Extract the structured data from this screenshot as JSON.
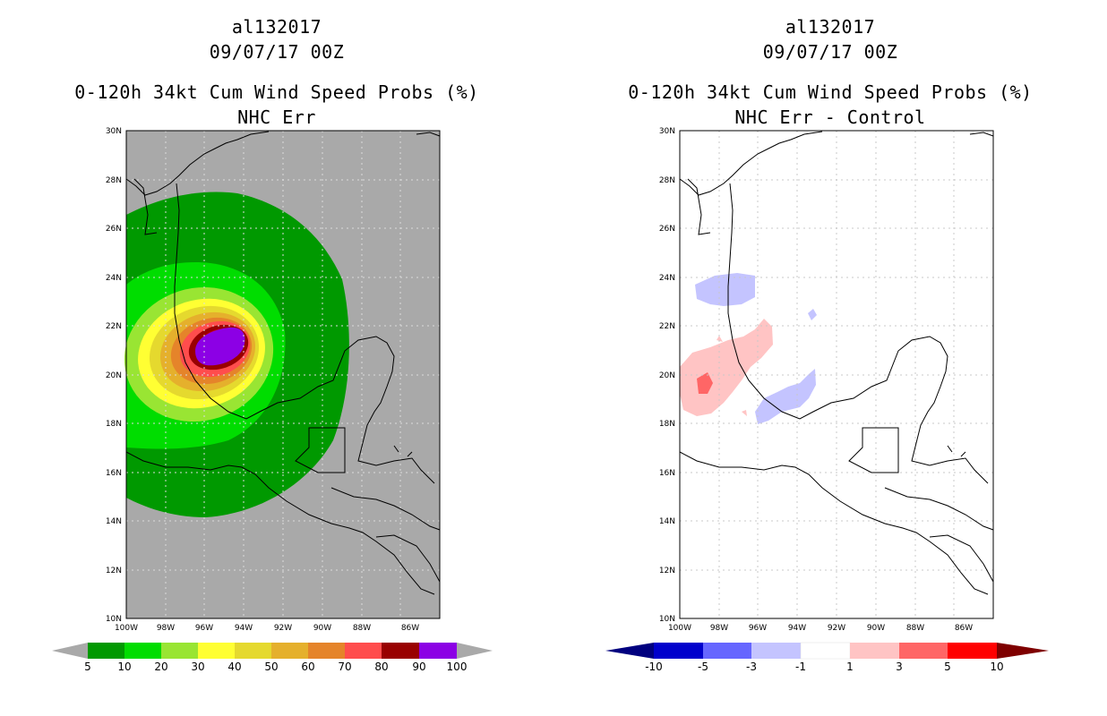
{
  "left_panel": {
    "storm_id": "al132017",
    "datetime": "09/07/17 00Z",
    "title": "0-120h 34kt Cum Wind Speed Probs (%)",
    "subtitle": "NHC Err",
    "background_color": "#a9a9a9",
    "colorbar": {
      "labels": [
        "5",
        "10",
        "20",
        "30",
        "40",
        "50",
        "60",
        "70",
        "80",
        "90",
        "100"
      ],
      "colors": [
        "#009900",
        "#00dd00",
        "#99e533",
        "#ffff33",
        "#e5d92e",
        "#e5b02c",
        "#e5842a",
        "#ff4d4d",
        "#990000",
        "#8c00e5"
      ],
      "under_color": "#a9a9a9",
      "over_color": "#a9a9a9"
    }
  },
  "right_panel": {
    "storm_id": "al132017",
    "datetime": "09/07/17 00Z",
    "title": "0-120h 34kt Cum Wind Speed Probs (%)",
    "subtitle": "NHC Err - Control",
    "background_color": "#ffffff",
    "colorbar": {
      "labels": [
        "-10",
        "-5",
        "-3",
        "-1",
        "1",
        "3",
        "5",
        "10"
      ],
      "colors": [
        "#0000cc",
        "#6666ff",
        "#c4c4ff",
        "#ffffff",
        "#ffc4c4",
        "#ff6666",
        "#ff0000"
      ],
      "under_color": "#00007f",
      "over_color": "#7f0000"
    }
  },
  "axes": {
    "lat_labels": [
      "30N",
      "28N",
      "26N",
      "24N",
      "22N",
      "20N",
      "18N",
      "16N",
      "14N",
      "12N",
      "10N"
    ],
    "lon_labels": [
      "100W",
      "98W",
      "96W",
      "94W",
      "92W",
      "90W",
      "88W",
      "86W"
    ]
  }
}
